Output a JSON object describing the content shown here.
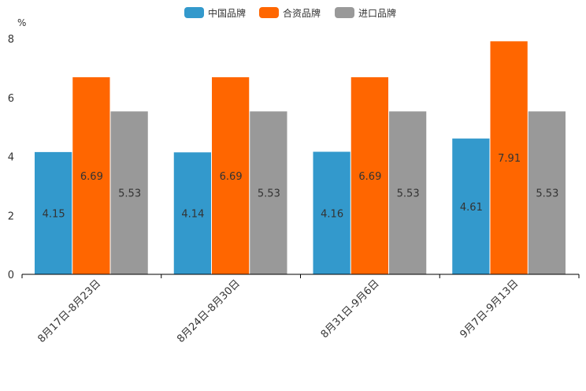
{
  "chart_data": {
    "type": "bar",
    "title": "",
    "xlabel": "",
    "ylabel": "%",
    "ylim": [
      0,
      8
    ],
    "yticks": [
      "0",
      "2",
      "4",
      "6",
      "8"
    ],
    "grid": false,
    "legend_position": "top-center",
    "categories": [
      "8月17日-8月23日",
      "8月24日-8月30日",
      "8月31日-9月6日",
      "9月7日-9月13日"
    ],
    "series": [
      {
        "name": "中国品牌",
        "color": "#3399cc",
        "values": [
          4.15,
          4.14,
          4.16,
          4.61
        ],
        "labels": [
          "4.15",
          "4.14",
          "4.16",
          "4.61"
        ]
      },
      {
        "name": "合资品牌",
        "color": "#ff6600",
        "values": [
          6.69,
          6.69,
          6.69,
          7.91
        ],
        "labels": [
          "6.69",
          "6.69",
          "6.69",
          "7.91"
        ]
      },
      {
        "name": "进口品牌",
        "color": "#999999",
        "values": [
          5.53,
          5.53,
          5.53,
          5.53
        ],
        "labels": [
          "5.53",
          "5.53",
          "5.53",
          "5.53"
        ]
      }
    ]
  }
}
